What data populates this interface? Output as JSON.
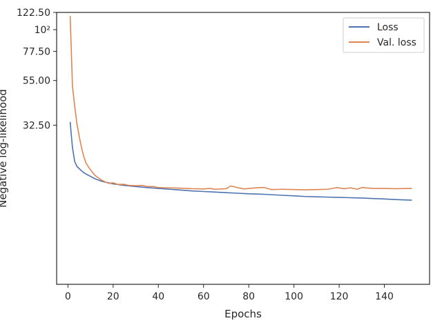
{
  "chart_data": {
    "type": "line",
    "xlabel": "Epochs",
    "ylabel": "Negative log-likelihood",
    "xlim": [
      -5,
      160
    ],
    "ylim": [
      5,
      122.5
    ],
    "yscale": "log",
    "x_ticks": [
      0,
      20,
      40,
      60,
      80,
      100,
      120,
      140
    ],
    "x_tick_labels": [
      "0",
      "20",
      "40",
      "60",
      "80",
      "100",
      "120",
      "140"
    ],
    "y_ticks": [
      32.5,
      55,
      77.5,
      100,
      122.5
    ],
    "y_tick_labels": [
      "32.50",
      "55.00",
      "77.50",
      "10²",
      "122.50"
    ],
    "legend_position": "top-right",
    "grid": false,
    "colors": {
      "loss": "#4c72b0",
      "val_loss": "#dd8452",
      "axes": "#262626"
    },
    "series": [
      {
        "name": "Loss",
        "color": "#4c72b0",
        "x": [
          1,
          2,
          3,
          4,
          5,
          6,
          7,
          8,
          10,
          12,
          15,
          18,
          20,
          25,
          30,
          35,
          40,
          45,
          50,
          55,
          60,
          65,
          70,
          75,
          80,
          85,
          90,
          95,
          100,
          105,
          110,
          115,
          120,
          125,
          130,
          135,
          140,
          145,
          152
        ],
        "values": [
          33.6,
          25.0,
          21.2,
          20.0,
          19.5,
          19.0,
          18.6,
          18.3,
          17.8,
          17.3,
          16.8,
          16.5,
          16.3,
          16.0,
          15.8,
          15.6,
          15.45,
          15.3,
          15.15,
          15.0,
          14.9,
          14.8,
          14.7,
          14.6,
          14.5,
          14.45,
          14.35,
          14.25,
          14.15,
          14.05,
          14.0,
          13.95,
          13.9,
          13.85,
          13.8,
          13.72,
          13.65,
          13.55,
          13.45
        ]
      },
      {
        "name": "Val. loss",
        "color": "#dd8452",
        "x": [
          1,
          2,
          3,
          4,
          5,
          6,
          7,
          8,
          10,
          12,
          15,
          17,
          18,
          20,
          22,
          25,
          27,
          30,
          33,
          35,
          38,
          40,
          45,
          50,
          55,
          60,
          63,
          65,
          70,
          72,
          75,
          78,
          80,
          85,
          87,
          90,
          95,
          100,
          105,
          110,
          115,
          119,
          122,
          125,
          128,
          130,
          135,
          140,
          145,
          152
        ],
        "values": [
          117,
          51.5,
          40.5,
          33.0,
          28.5,
          25.0,
          22.5,
          20.8,
          19.2,
          18.0,
          17.0,
          16.6,
          16.4,
          16.5,
          16.2,
          16.2,
          16.0,
          15.95,
          16.0,
          15.8,
          15.8,
          15.6,
          15.55,
          15.5,
          15.4,
          15.35,
          15.45,
          15.3,
          15.4,
          15.9,
          15.6,
          15.35,
          15.45,
          15.6,
          15.6,
          15.25,
          15.3,
          15.25,
          15.2,
          15.25,
          15.3,
          15.6,
          15.4,
          15.55,
          15.3,
          15.6,
          15.45,
          15.45,
          15.4,
          15.45
        ]
      }
    ]
  }
}
